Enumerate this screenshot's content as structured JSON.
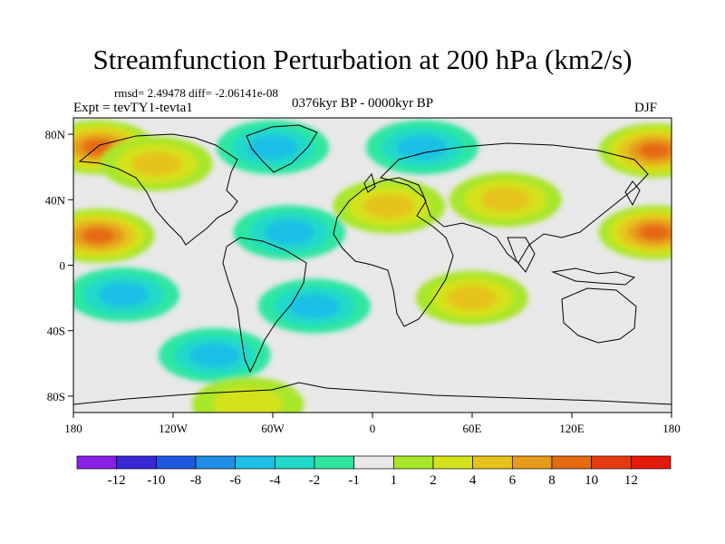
{
  "chart_data": {
    "type": "contour_map",
    "title": "Streamfunction Perturbation at 200 hPa (km2/s)",
    "subtitle_left": "rmsd= 2.49478 diff= -2.06141e-08",
    "experiment_label": "Expt = tevTY1-tevta1",
    "center_label": "0376kyr BP - 0000kyr BP",
    "season_label": "DJF",
    "x_ticks": [
      "180",
      "120W",
      "60W",
      "0",
      "60E",
      "120E",
      "180"
    ],
    "x_tick_values": [
      -180,
      -120,
      -60,
      0,
      60,
      120,
      180
    ],
    "y_ticks": [
      "80N",
      "40N",
      "0",
      "40S",
      "80S"
    ],
    "y_tick_values": [
      80,
      40,
      0,
      -40,
      -80
    ],
    "xlim": [
      -180,
      180
    ],
    "ylim": [
      -90,
      90
    ],
    "colorbar": {
      "labels": [
        "-12",
        "-10",
        "-8",
        "-6",
        "-4",
        "-2",
        "-1",
        "1",
        "2",
        "4",
        "6",
        "8",
        "10",
        "12"
      ],
      "colors": [
        "#8a1fe6",
        "#3a28d6",
        "#1f57e0",
        "#1e8ee8",
        "#1ebfe6",
        "#20d9c8",
        "#2ee6a0",
        "#e8e8e8",
        "#a8e62a",
        "#d4e21e",
        "#e6c21a",
        "#e69a1a",
        "#e66a12",
        "#e63a10",
        "#e61a0a"
      ]
    },
    "anomaly_centers": [
      {
        "lon": -165,
        "lat": 72,
        "value": 8
      },
      {
        "lon": -130,
        "lat": 62,
        "value": 4
      },
      {
        "lon": -60,
        "lat": 72,
        "value": -4
      },
      {
        "lon": 30,
        "lat": 72,
        "value": -4
      },
      {
        "lon": -165,
        "lat": 18,
        "value": 8
      },
      {
        "lon": -150,
        "lat": -18,
        "value": -4
      },
      {
        "lon": -50,
        "lat": 20,
        "value": -4
      },
      {
        "lon": 10,
        "lat": 36,
        "value": 4
      },
      {
        "lon": 80,
        "lat": 40,
        "value": 4
      },
      {
        "lon": 170,
        "lat": 20,
        "value": 8
      },
      {
        "lon": 170,
        "lat": 70,
        "value": 8
      },
      {
        "lon": 60,
        "lat": -20,
        "value": 4
      },
      {
        "lon": -35,
        "lat": -25,
        "value": -4
      },
      {
        "lon": -95,
        "lat": -55,
        "value": -4
      },
      {
        "lon": -75,
        "lat": -85,
        "value": 2
      }
    ]
  }
}
